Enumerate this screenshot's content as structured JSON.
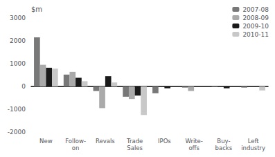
{
  "chart_data": {
    "type": "bar",
    "ylabel": "$m",
    "categories": [
      "New",
      "Follow-\non",
      "Revals",
      "Trade\nSales",
      "IPOs",
      "Write-\noffs",
      "Buy-\nbacks",
      "Left\nindustry"
    ],
    "series": [
      {
        "name": "2007-08",
        "color": "#787878",
        "values": [
          2150,
          520,
          -200,
          -450,
          -300,
          -50,
          -30,
          -50
        ]
      },
      {
        "name": "2008-09",
        "color": "#aaaaaa",
        "values": [
          950,
          640,
          -950,
          -550,
          0,
          -200,
          0,
          0
        ]
      },
      {
        "name": "2009-10",
        "color": "#1a1a1a",
        "values": [
          820,
          380,
          450,
          -400,
          -80,
          0,
          -80,
          0
        ]
      },
      {
        "name": "2010-11",
        "color": "#c8c8c8",
        "values": [
          780,
          230,
          175,
          -1250,
          0,
          0,
          0,
          -175
        ]
      }
    ],
    "ylim": [
      -2000,
      3000
    ],
    "yticks": [
      -2000,
      -1000,
      0,
      1000,
      2000,
      3000
    ],
    "grid": false,
    "legend": "upper right"
  }
}
